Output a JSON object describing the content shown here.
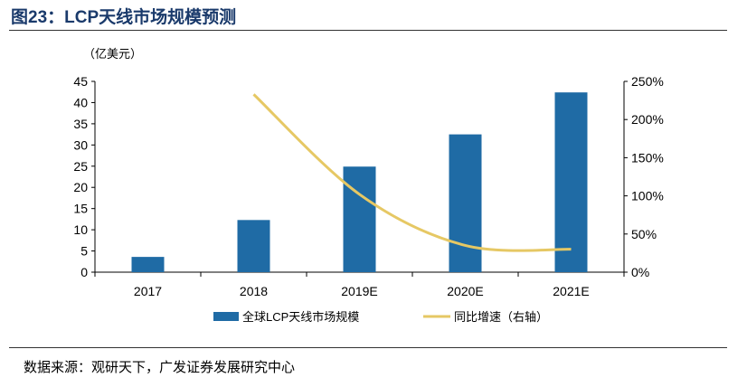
{
  "figure_title": "图23：LCP天线市场规模预测",
  "source": "数据来源：观研天下，广发证券发展研究中心",
  "chart_data": {
    "type": "bar+line",
    "categories": [
      "2017",
      "2018",
      "2019E",
      "2020E",
      "2021E"
    ],
    "y_left": {
      "unit_label": "（亿美元）",
      "lim": [
        0,
        45
      ],
      "ticks": [
        "0",
        "5",
        "10",
        "15",
        "20",
        "25",
        "30",
        "35",
        "40",
        "45"
      ]
    },
    "y_right": {
      "lim": [
        0,
        250
      ],
      "ticks": [
        "0%",
        "50%",
        "100%",
        "150%",
        "200%",
        "250%"
      ]
    },
    "series": [
      {
        "name": "全球LCP天线市场规模",
        "type": "bar",
        "axis": "left",
        "color": "#1F6BA5",
        "values": [
          3.6,
          12.3,
          24.9,
          32.5,
          42.4
        ]
      },
      {
        "name": "同比增速（右轴）",
        "type": "line",
        "axis": "right",
        "color": "#E6C864",
        "values": [
          null,
          233,
          102,
          35,
          30
        ]
      }
    ],
    "legend_position": "bottom",
    "grid": false
  }
}
